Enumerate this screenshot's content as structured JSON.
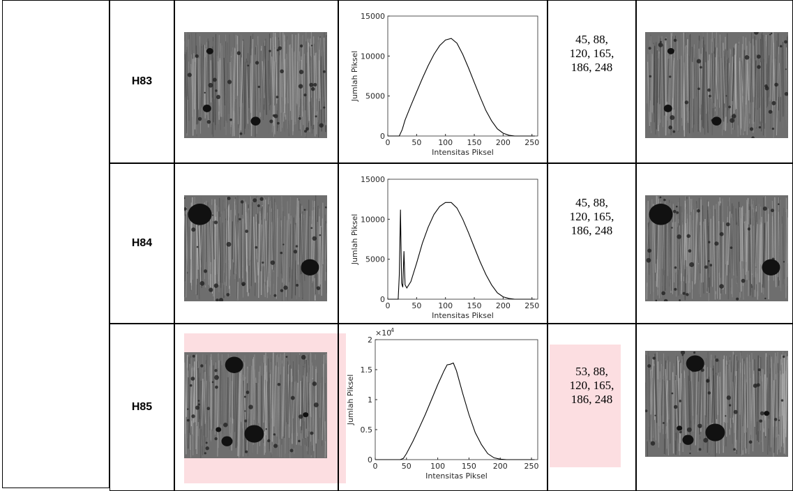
{
  "table": {
    "rows": [
      {
        "label": "H83",
        "histogram": {
          "type": "line",
          "xlabel": "Intensitas Piksel",
          "ylabel": "Jumlah Piksel",
          "xlim": [
            0,
            260
          ],
          "ylim": [
            0,
            15000
          ],
          "xticks": [
            0,
            50,
            100,
            150,
            200,
            250
          ],
          "yticks": [
            0,
            5000,
            10000,
            15000
          ],
          "x": [
            0,
            10,
            20,
            25,
            30,
            40,
            50,
            60,
            70,
            80,
            90,
            100,
            110,
            120,
            130,
            140,
            150,
            160,
            170,
            180,
            190,
            200,
            210,
            220,
            255
          ],
          "values": [
            0,
            0,
            0,
            800,
            2000,
            3800,
            5500,
            7200,
            8800,
            10200,
            11300,
            12000,
            12200,
            11600,
            10200,
            8500,
            6700,
            4900,
            3200,
            1900,
            900,
            350,
            100,
            0,
            0
          ]
        },
        "thresholds": [
          "45, 88,",
          "120, 165,",
          "186, 248"
        ]
      },
      {
        "label": "H84",
        "histogram": {
          "type": "line",
          "xlabel": "Intensitas Piksel",
          "ylabel": "Jumlah Piksel",
          "xlim": [
            0,
            260
          ],
          "ylim": [
            0,
            15000
          ],
          "xticks": [
            0,
            50,
            100,
            150,
            200,
            250
          ],
          "yticks": [
            0,
            5000,
            10000,
            15000
          ],
          "x": [
            0,
            10,
            18,
            20,
            22,
            24,
            26,
            28,
            30,
            33,
            40,
            50,
            60,
            70,
            80,
            90,
            100,
            110,
            120,
            130,
            140,
            150,
            160,
            170,
            180,
            190,
            200,
            210,
            220,
            255
          ],
          "values": [
            0,
            0,
            0,
            3000,
            11200,
            2000,
            1500,
            6000,
            1800,
            1400,
            2200,
            4500,
            7000,
            9000,
            10600,
            11600,
            12100,
            12100,
            11400,
            10000,
            8300,
            6500,
            4700,
            3100,
            1800,
            800,
            300,
            100,
            0,
            0
          ]
        },
        "thresholds": [
          "45, 88,",
          "120, 165,",
          "186, 248"
        ]
      },
      {
        "label": "H85",
        "histogram": {
          "type": "line",
          "xlabel": "Intensitas Piksel",
          "ylabel": "Jumlah Piksel",
          "xlim": [
            0,
            260
          ],
          "ylim": [
            0,
            20000
          ],
          "xticks": [
            0,
            50,
            100,
            150,
            200,
            250
          ],
          "yticks": [
            0,
            {
              "value": 5000,
              "label": "0.5"
            },
            {
              "value": 10000,
              "label": "1"
            },
            {
              "value": 15000,
              "label": "1.5"
            },
            {
              "value": 20000,
              "label": "2"
            }
          ],
          "y_multiplier": "×10",
          "y_exponent": "4",
          "x": [
            0,
            40,
            45,
            50,
            60,
            70,
            80,
            90,
            100,
            110,
            115,
            120,
            125,
            130,
            140,
            150,
            160,
            170,
            180,
            190,
            200,
            210,
            255
          ],
          "values": [
            0,
            0,
            200,
            1000,
            3000,
            5200,
            7500,
            10000,
            12500,
            14800,
            15800,
            15900,
            16100,
            14800,
            11000,
            7500,
            4500,
            2500,
            1000,
            300,
            80,
            0,
            0
          ]
        },
        "thresholds": [
          "53, 88,",
          "120, 165,",
          "186, 248"
        ]
      }
    ]
  }
}
